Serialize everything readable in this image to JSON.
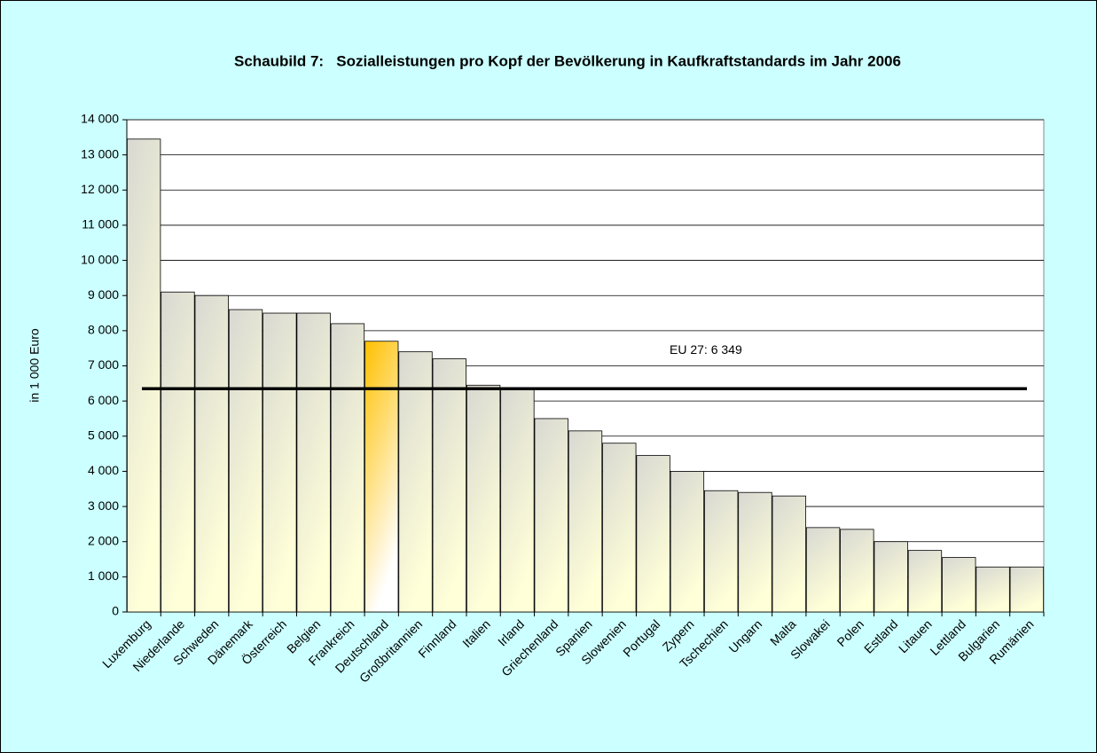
{
  "chart_data": {
    "type": "bar",
    "title": "Schaubild 7:   Sozialleistungen pro Kopf der Bevölkerung in Kaufkraftstandards im Jahr 2006",
    "y_label": "in 1 000 Euro",
    "categories": [
      "Luxemburg",
      "Niederlande",
      "Schweden",
      "Dänemark",
      "Österreich",
      "Belgien",
      "Frankreich",
      "Deutschland",
      "Großbritannien",
      "Finnland",
      "Italien",
      "Irland",
      "Griechenland",
      "Spanien",
      "Slowenien",
      "Portugal",
      "Zypern",
      "Tschechien",
      "Ungarn",
      "Malta",
      "Slowakei",
      "Polen",
      "Estland",
      "Litauen",
      "Lettland",
      "Bulgarien",
      "Rumänien"
    ],
    "values": [
      13450,
      9100,
      9000,
      8600,
      8500,
      8500,
      8200,
      7700,
      7400,
      7200,
      6450,
      6350,
      5500,
      5150,
      4800,
      4450,
      4000,
      3450,
      3400,
      3300,
      2400,
      2350,
      2000,
      1750,
      1550,
      1280,
      1280
    ],
    "colors": [
      "#d8d8d2",
      "#d8d8d2",
      "#d8d8d2",
      "#d8d8d2",
      "#d8d8d2",
      "#d8d8d2",
      "#d8d8d2",
      "#ffc000",
      "#d8d8d2",
      "#d8d8d2",
      "#d8d8d2",
      "#d8d8d2",
      "#d8d8d2",
      "#d8d8d2",
      "#d8d8d2",
      "#d8d8d2",
      "#d8d8d2",
      "#d8d8d2",
      "#d8d8d2",
      "#d8d8d2",
      "#d8d8d2",
      "#d8d8d2",
      "#d8d8d2",
      "#d8d8d2",
      "#d8d8d2",
      "#d8d8d2",
      "#d8d8d2"
    ],
    "reference_line": {
      "value": 6349,
      "label": "EU 27: 6 349"
    },
    "ylim": [
      0,
      14000
    ],
    "yticks": [
      0,
      {
        "value": 1000,
        "label": "1 000"
      },
      {
        "value": 2000,
        "label": "2 000"
      },
      {
        "value": 3000,
        "label": "3 000"
      },
      {
        "value": 4000,
        "label": "4 000"
      },
      {
        "value": 5000,
        "label": "5 000"
      },
      {
        "value": 6000,
        "label": "6 000"
      },
      {
        "value": 7000,
        "label": "7 000"
      },
      {
        "value": 8000,
        "label": "8 000"
      },
      {
        "value": 9000,
        "label": "9 000"
      },
      {
        "value": 10000,
        "label": "10 000"
      },
      {
        "value": 11000,
        "label": "11 000"
      },
      {
        "value": 12000,
        "label": "12 000"
      },
      {
        "value": 13000,
        "label": "13 000"
      },
      {
        "value": 14000,
        "label": "14 000"
      }
    ],
    "grid": true
  }
}
